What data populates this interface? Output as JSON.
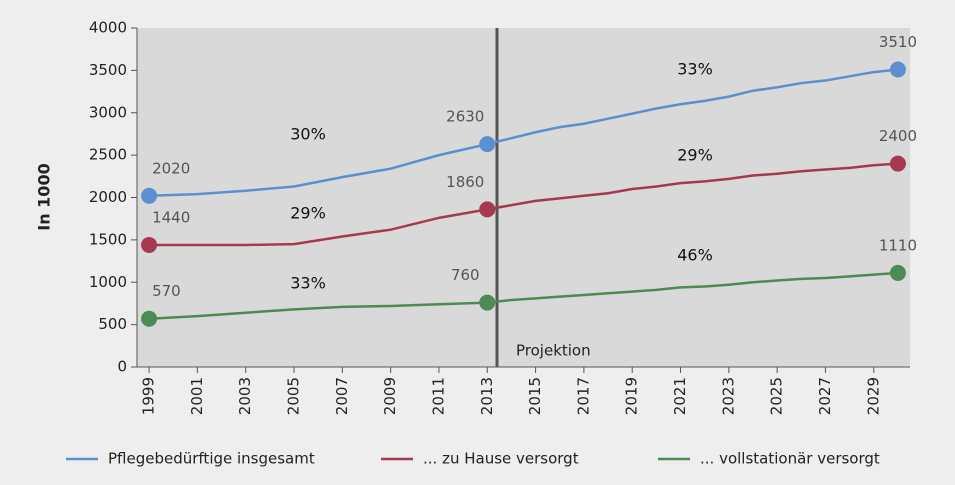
{
  "chart_data": {
    "type": "line",
    "y_label": "In 1000",
    "projection_label": "Projektion",
    "x": [
      1999,
      2001,
      2003,
      2005,
      2007,
      2009,
      2011,
      2013,
      2014,
      2015,
      2016,
      2017,
      2018,
      2019,
      2020,
      2021,
      2022,
      2023,
      2024,
      2025,
      2026,
      2027,
      2028,
      2029,
      2030
    ],
    "series": [
      {
        "name": "Pflegebedürftige insgesamt",
        "color": "#5b8fd0",
        "values": [
          2020,
          2040,
          2080,
          2130,
          2240,
          2340,
          2500,
          2630,
          2700,
          2770,
          2830,
          2870,
          2930,
          2990,
          3050,
          3100,
          3140,
          3190,
          3260,
          3300,
          3350,
          3380,
          3430,
          3480,
          3510
        ]
      },
      {
        "name": "... zu Hause versorgt",
        "color": "#a6384f",
        "values": [
          1440,
          1440,
          1440,
          1450,
          1540,
          1620,
          1760,
          1860,
          1910,
          1960,
          1990,
          2020,
          2050,
          2100,
          2130,
          2170,
          2190,
          2220,
          2260,
          2280,
          2310,
          2330,
          2350,
          2380,
          2400
        ]
      },
      {
        "name": "... vollstationär versorgt",
        "color": "#4e8a55",
        "values": [
          570,
          600,
          640,
          680,
          710,
          720,
          740,
          760,
          790,
          810,
          830,
          850,
          870,
          890,
          910,
          940,
          950,
          970,
          1000,
          1020,
          1040,
          1050,
          1070,
          1090,
          1110
        ]
      }
    ],
    "annotations": [
      "30%",
      "29%",
      "33%",
      "33%",
      "29%",
      "46%"
    ],
    "xlim": [
      1998.5,
      2030.5
    ],
    "xticks": [
      1999,
      2001,
      2003,
      2005,
      2007,
      2009,
      2011,
      2013,
      2015,
      2017,
      2019,
      2021,
      2023,
      2025,
      2027,
      2029
    ],
    "ylim": [
      0,
      4000
    ],
    "yticks": [
      0,
      500,
      1000,
      1500,
      2000,
      2500,
      3000,
      3500,
      4000
    ],
    "plot_background": "#d9d9d9"
  }
}
